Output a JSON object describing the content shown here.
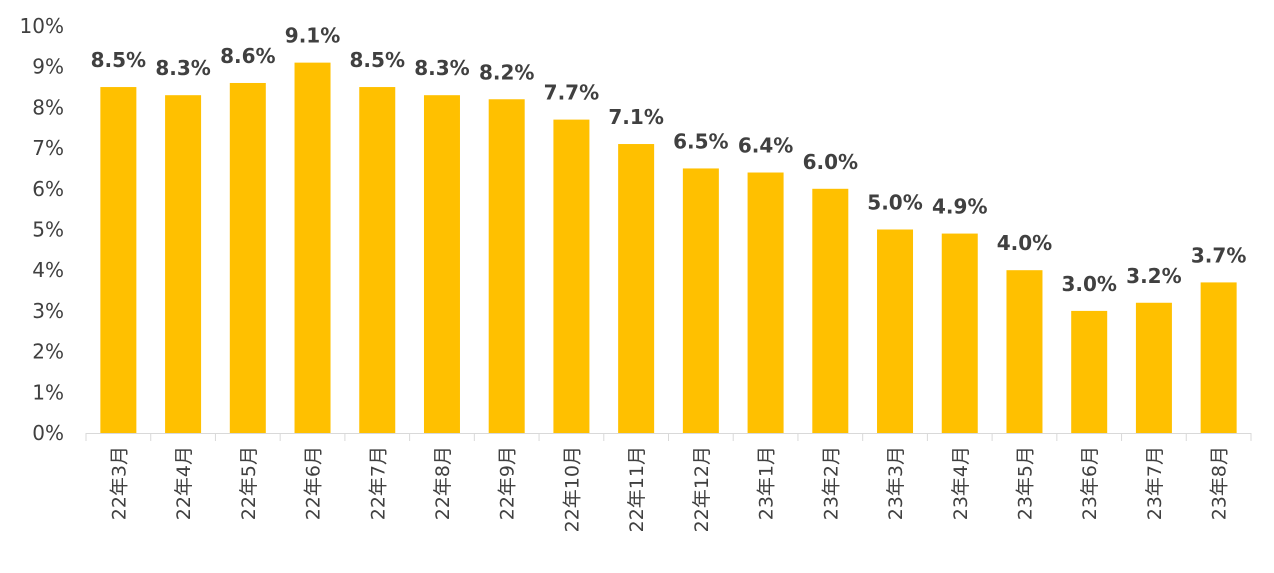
{
  "chart_data": {
    "type": "bar",
    "title": "",
    "xlabel": "",
    "ylabel": "",
    "categories": [
      "22年3月",
      "22年4月",
      "22年5月",
      "22年6月",
      "22年7月",
      "22年8月",
      "22年9月",
      "22年10月",
      "22年11月",
      "22年12月",
      "23年1月",
      "23年2月",
      "23年3月",
      "23年4月",
      "23年5月",
      "23年6月",
      "23年7月",
      "23年8月"
    ],
    "values": [
      8.5,
      8.3,
      8.6,
      9.1,
      8.5,
      8.3,
      8.2,
      7.7,
      7.1,
      6.5,
      6.4,
      6.0,
      5.0,
      4.9,
      4.0,
      3.0,
      3.2,
      3.7
    ],
    "data_labels": [
      "8.5%",
      "8.3%",
      "8.6%",
      "9.1%",
      "8.5%",
      "8.3%",
      "8.2%",
      "7.7%",
      "7.1%",
      "6.5%",
      "6.4%",
      "6.0%",
      "5.0%",
      "4.9%",
      "4.0%",
      "3.0%",
      "3.2%",
      "3.7%"
    ],
    "ylim": [
      0,
      10
    ],
    "yticks": [
      "0%",
      "1%",
      "2%",
      "3%",
      "4%",
      "5%",
      "6%",
      "7%",
      "8%",
      "9%",
      "10%"
    ],
    "grid": false,
    "legend": "none",
    "bar_color": "#FFC000",
    "axis_color": "#D9D9D9",
    "text_color": "#404040"
  }
}
